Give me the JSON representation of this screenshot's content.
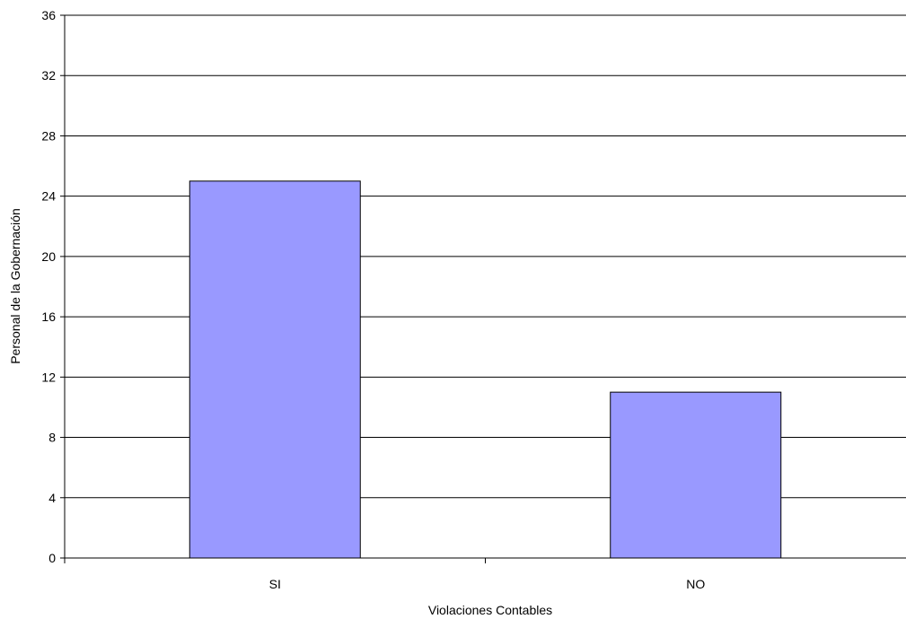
{
  "chart_data": {
    "type": "bar",
    "categories": [
      "SI",
      "NO"
    ],
    "values": [
      25,
      11
    ],
    "title": "",
    "xlabel": "Violaciones Contables",
    "ylabel": "Personal de la Gobernación",
    "ylim": [
      0,
      36
    ],
    "yticks": [
      0,
      4,
      8,
      12,
      16,
      20,
      24,
      28,
      32,
      36
    ],
    "grid": "horizontal",
    "legend": "none",
    "bar_color": "#9999ff",
    "bar_edge_color": "#000000"
  }
}
